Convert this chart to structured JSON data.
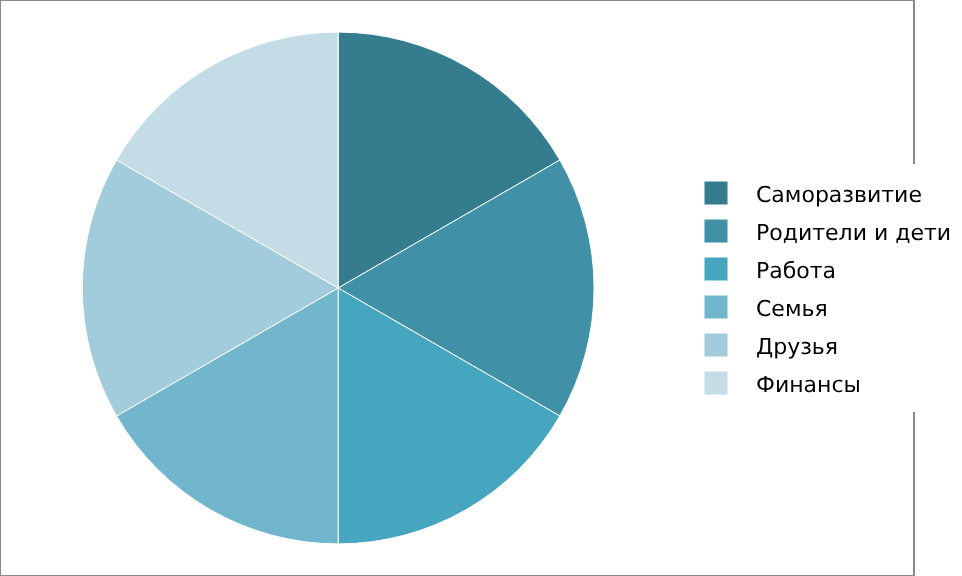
{
  "chart_data": {
    "type": "pie",
    "categories": [
      "Саморазвитие",
      "Родители и дети",
      "Работа",
      "Семья",
      "Друзья",
      "Финансы"
    ],
    "values": [
      16.67,
      16.67,
      16.67,
      16.67,
      16.67,
      16.67
    ],
    "colors": [
      "#357c8f",
      "#4091a8",
      "#46a5bf",
      "#71b6cc",
      "#a2cbdb",
      "#c3dce5"
    ],
    "legend": "right"
  }
}
